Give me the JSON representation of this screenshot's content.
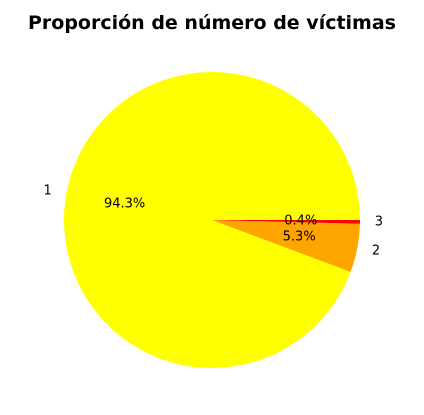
{
  "chart_data": {
    "type": "pie",
    "title": "Proporción de número de víctimas",
    "labels": [
      "1",
      "2",
      "3"
    ],
    "values": [
      94.3,
      5.3,
      0.4
    ],
    "percent_labels": [
      "94.3%",
      "5.3%",
      "0.4%"
    ],
    "colors": [
      "#ffff00",
      "#ffa500",
      "#ff0000"
    ],
    "start_angle_deg": 0,
    "direction": "counterclockwise",
    "legend": "none"
  }
}
